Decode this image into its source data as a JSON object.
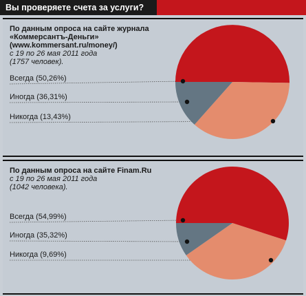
{
  "title": "Вы проверяете счета за услуги?",
  "colors": {
    "always": "#c4161c",
    "sometimes": "#e48c6d",
    "never": "#647683",
    "title_bg": "#1b1b1b",
    "panel_bg": "#c5ccd4"
  },
  "panels": [
    {
      "source_line1": "По данным опроса на сайте журнала",
      "source_line2": "«Коммерсантъ-Деньги»",
      "source_line3": "(www.kommersant.ru/money/)",
      "date_line": "с 19 по 26 мая 2011 года",
      "count_line": "(1757 человек).",
      "labels": [
        "Всегда (50,26%)",
        "Иногда (36,31%)",
        "Никогда (13,43%)"
      ]
    },
    {
      "source_line1": "По данным опроса на сайте Finam.Ru",
      "date_line": "с 19 по 26 мая 2011 года",
      "count_line": "(1042 человека).",
      "labels": [
        "Всегда (54,99%)",
        "Иногда (35,32%)",
        "Никогда (9,69%)"
      ]
    }
  ],
  "chart_data": [
    {
      "type": "pie",
      "title": "Вы проверяете счета за услуги?",
      "categories": [
        "Всегда",
        "Иногда",
        "Никогда"
      ],
      "values": [
        50.26,
        36.31,
        13.43
      ],
      "colors": [
        "#c4161c",
        "#e48c6d",
        "#647683"
      ]
    },
    {
      "type": "pie",
      "title": "Вы проверяете счета за услуги?",
      "categories": [
        "Всегда",
        "Иногда",
        "Никогда"
      ],
      "values": [
        54.99,
        35.32,
        9.69
      ],
      "colors": [
        "#c4161c",
        "#e48c6d",
        "#647683"
      ]
    }
  ]
}
